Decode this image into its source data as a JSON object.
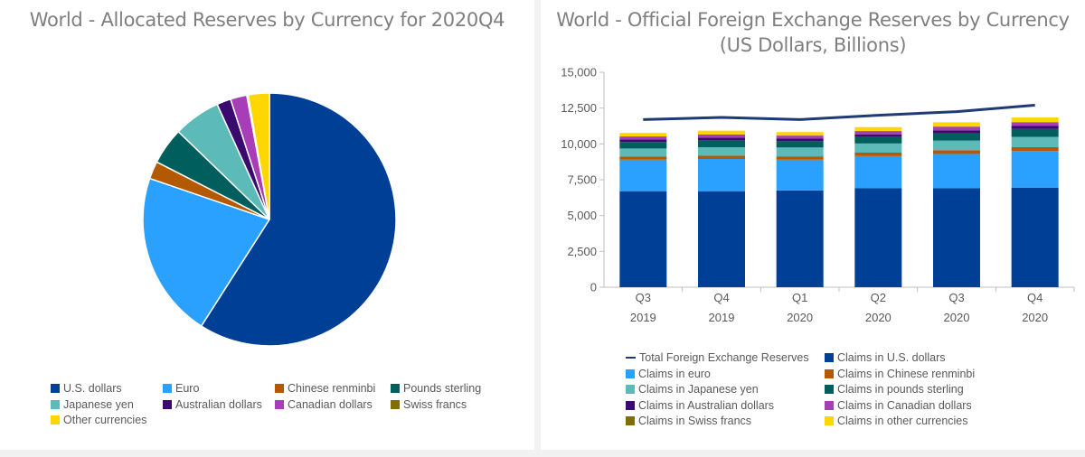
{
  "chart_data": [
    {
      "type": "pie",
      "title": "World - Allocated Reserves by Currency for 2020Q4",
      "labels": [
        "U.S. dollars",
        "Euro",
        "Chinese renminbi",
        "Pounds sterling",
        "Japanese yen",
        "Australian dollars",
        "Canadian dollars",
        "Swiss francs",
        "Other currencies"
      ],
      "values": [
        59.0,
        21.2,
        2.25,
        4.7,
        6.0,
        1.8,
        2.1,
        0.17,
        2.7
      ],
      "colors": [
        "#003f96",
        "#2aa1ff",
        "#b35900",
        "#005e5c",
        "#5cbbb8",
        "#3a0a6e",
        "#a83db8",
        "#806e00",
        "#ffd700"
      ],
      "legend": "bottom"
    },
    {
      "type": "bar",
      "stacked": true,
      "title": "World - Official Foreign Exchange Reserves by Currency",
      "subtitle": "(US Dollars, Billions)",
      "categories": [
        [
          "Q3",
          "2019"
        ],
        [
          "Q4",
          "2019"
        ],
        [
          "Q1",
          "2020"
        ],
        [
          "Q2",
          "2020"
        ],
        [
          "Q3",
          "2020"
        ],
        [
          "Q4",
          "2020"
        ]
      ],
      "ylim": [
        0,
        15000
      ],
      "yticks": [
        0,
        2500,
        5000,
        7500,
        10000,
        12500,
        15000
      ],
      "ytick_labels": [
        "0",
        "2,500",
        "5,000",
        "7,500",
        "10,000",
        "12,500",
        "15,000"
      ],
      "series": [
        {
          "name": "Claims in U.S. dollars",
          "color": "#003f96",
          "values": [
            6700,
            6700,
            6750,
            6900,
            6900,
            6950
          ]
        },
        {
          "name": "Claims in euro",
          "color": "#2aa1ff",
          "values": [
            2200,
            2250,
            2150,
            2250,
            2400,
            2550
          ]
        },
        {
          "name": "Claims in Chinese renminbi",
          "color": "#b35900",
          "values": [
            210,
            220,
            230,
            240,
            260,
            270
          ]
        },
        {
          "name": "Claims in Japanese yen",
          "color": "#5cbbb8",
          "values": [
            570,
            600,
            620,
            640,
            670,
            720
          ]
        },
        {
          "name": "Claims in pounds sterling",
          "color": "#005e5c",
          "values": [
            450,
            480,
            440,
            450,
            520,
            550
          ]
        },
        {
          "name": "Claims in Australian dollars",
          "color": "#3a0a6e",
          "values": [
            180,
            190,
            180,
            190,
            200,
            210
          ]
        },
        {
          "name": "Claims in Canadian dollars",
          "color": "#a83db8",
          "values": [
            200,
            210,
            200,
            220,
            240,
            250
          ]
        },
        {
          "name": "Claims in Swiss francs",
          "color": "#806e00",
          "values": [
            15,
            16,
            16,
            18,
            20,
            20
          ]
        },
        {
          "name": "Claims in other currencies",
          "color": "#ffd700",
          "values": [
            240,
            260,
            240,
            260,
            300,
            320
          ]
        }
      ],
      "line": {
        "name": "Total Foreign Exchange Reserves",
        "color": "#1f3b73",
        "values": [
          11700,
          11850,
          11700,
          12000,
          12250,
          12700
        ]
      },
      "legend": "bottom"
    }
  ]
}
